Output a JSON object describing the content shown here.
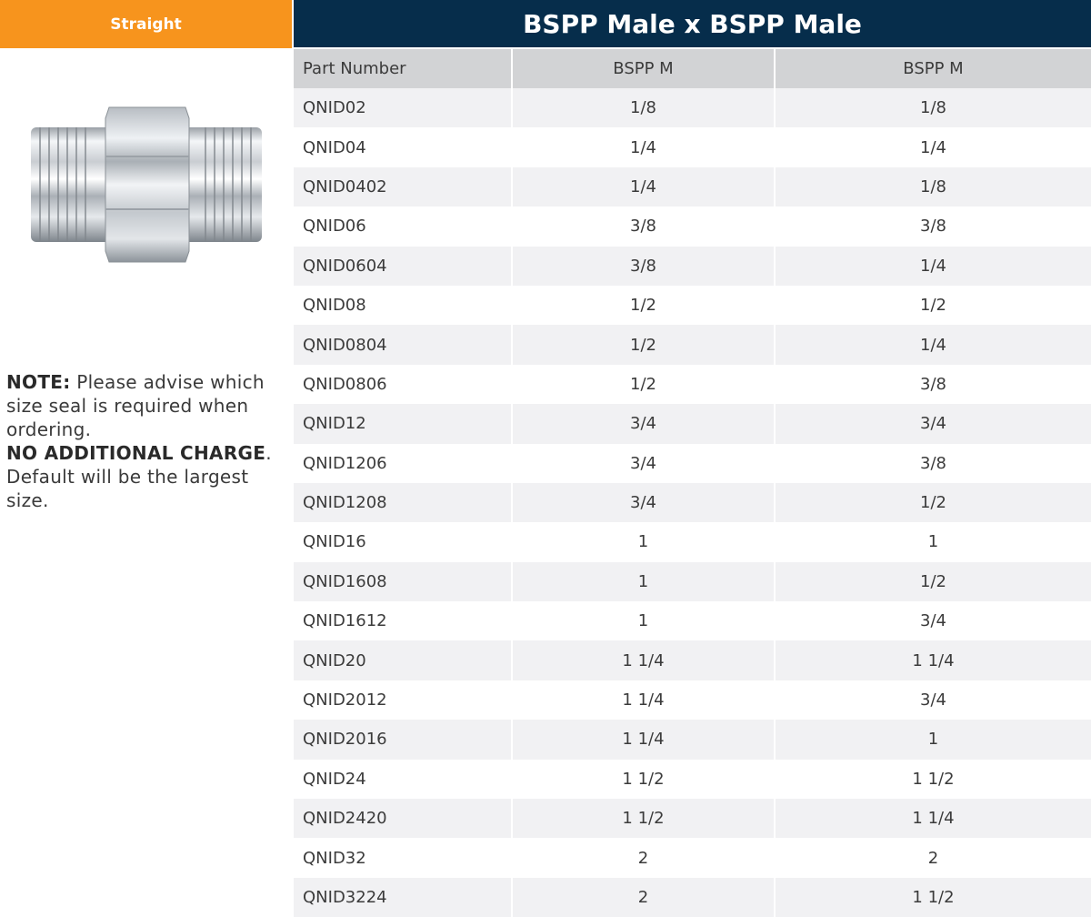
{
  "sidebar": {
    "tag": "Straight",
    "image_alt": "BSPP male x BSPP male straight adaptor",
    "note": {
      "note_label": "NOTE:",
      "note_text": " Please advise which size seal is required when ordering.",
      "charge_label": "NO ADDITIONAL CHARGE",
      "charge_suffix": ".",
      "default_text": "Default will be the largest size."
    }
  },
  "table": {
    "title": "BSPP Male x BSPP Male",
    "headers": [
      "Part Number",
      "BSPP M",
      "BSPP M"
    ],
    "rows": [
      [
        "QNID02",
        "1/8",
        "1/8"
      ],
      [
        "QNID04",
        "1/4",
        "1/4"
      ],
      [
        "QNID0402",
        "1/4",
        "1/8"
      ],
      [
        "QNID06",
        "3/8",
        "3/8"
      ],
      [
        "QNID0604",
        "3/8",
        "1/4"
      ],
      [
        "QNID08",
        "1/2",
        "1/2"
      ],
      [
        "QNID0804",
        "1/2",
        "1/4"
      ],
      [
        "QNID0806",
        "1/2",
        "3/8"
      ],
      [
        "QNID12",
        "3/4",
        "3/4"
      ],
      [
        "QNID1206",
        "3/4",
        "3/8"
      ],
      [
        "QNID1208",
        "3/4",
        "1/2"
      ],
      [
        "QNID16",
        "1",
        "1"
      ],
      [
        "QNID1608",
        "1",
        "1/2"
      ],
      [
        "QNID1612",
        "1",
        "3/4"
      ],
      [
        "QNID20",
        "1 1/4",
        "1 1/4"
      ],
      [
        "QNID2012",
        "1 1/4",
        "3/4"
      ],
      [
        "QNID2016",
        "1 1/4",
        "1"
      ],
      [
        "QNID24",
        "1 1/2",
        "1 1/2"
      ],
      [
        "QNID2420",
        "1 1/2",
        "1 1/4"
      ],
      [
        "QNID32",
        "2",
        "2"
      ],
      [
        "QNID3224",
        "2",
        "1 1/2"
      ]
    ]
  },
  "colors": {
    "tag_bg": "#f7941d",
    "title_bg": "#062d4b",
    "header_bg": "#d2d3d5",
    "row_alt_bg": "#f1f1f3"
  }
}
